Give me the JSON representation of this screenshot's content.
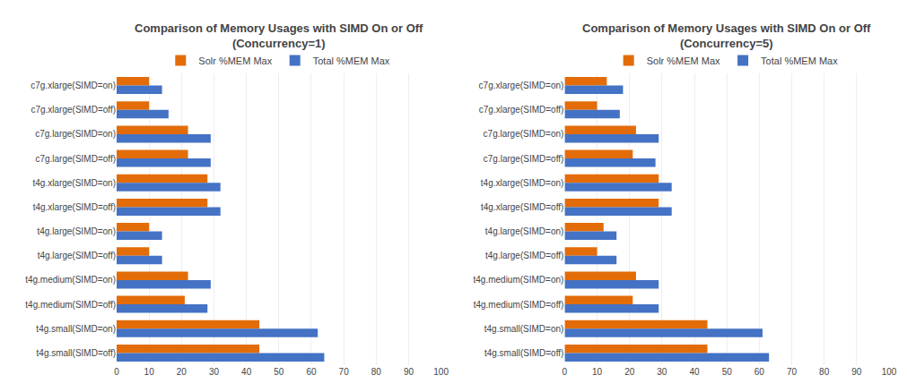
{
  "chart_data": [
    {
      "type": "bar",
      "orientation": "horizontal",
      "title": "Comparison of Memory Usages with SIMD On or Off\n(Concurrency=1)",
      "categories": [
        "c7g.xlarge(SIMD=on)",
        "c7g.xlarge(SIMD=off)",
        "c7g.large(SIMD=on)",
        "c7g.large(SIMD=off)",
        "t4g.xlarge(SIMD=on)",
        "t4g.xlarge(SIMD=off)",
        "t4g.large(SIMD=on)",
        "t4g.large(SIMD=off)",
        "t4g.medium(SIMD=on)",
        "t4g.medium(SIMD=off)",
        "t4g.small(SIMD=on)",
        "t4g.small(SIMD=off)"
      ],
      "series": [
        {
          "name": "Solr %MEM Max",
          "color": "#E36C09",
          "values": [
            10,
            10,
            22,
            22,
            28,
            28,
            10,
            10,
            22,
            21,
            44,
            44
          ]
        },
        {
          "name": "Total %MEM Max",
          "color": "#4472C4",
          "values": [
            14,
            16,
            29,
            29,
            32,
            32,
            14,
            14,
            29,
            28,
            62,
            64
          ]
        }
      ],
      "xlim": [
        0,
        100
      ],
      "xticks": [
        0,
        10,
        20,
        30,
        40,
        50,
        60,
        70,
        80,
        90,
        100
      ],
      "grid": true,
      "legend": "top"
    },
    {
      "type": "bar",
      "orientation": "horizontal",
      "title": "Comparison of Memory Usages with SIMD On or Off\n(Concurrency=5)",
      "categories": [
        "c7g.xlarge(SIMD=on)",
        "c7g.xlarge(SIMD=off)",
        "c7g.large(SIMD=on)",
        "c7g.large(SIMD=off)",
        "t4g.xlarge(SIMD=on)",
        "t4g.xlarge(SIMD=off)",
        "t4g.large(SIMD=on)",
        "t4g.large(SIMD=off)",
        "t4g.medium(SIMD=on)",
        "t4g.medium(SIMD=off)",
        "t4g.small(SIMD=on)",
        "t4g.small(SIMD=off)"
      ],
      "series": [
        {
          "name": "Solr %MEM Max",
          "color": "#E36C09",
          "values": [
            13,
            10,
            22,
            21,
            29,
            29,
            12,
            10,
            22,
            21,
            44,
            44
          ]
        },
        {
          "name": "Total %MEM Max",
          "color": "#4472C4",
          "values": [
            18,
            17,
            29,
            28,
            33,
            33,
            16,
            16,
            29,
            29,
            61,
            63
          ]
        }
      ],
      "xlim": [
        0,
        100
      ],
      "xticks": [
        0,
        10,
        20,
        30,
        40,
        50,
        60,
        70,
        80,
        90,
        100
      ],
      "grid": true,
      "legend": "top"
    }
  ]
}
